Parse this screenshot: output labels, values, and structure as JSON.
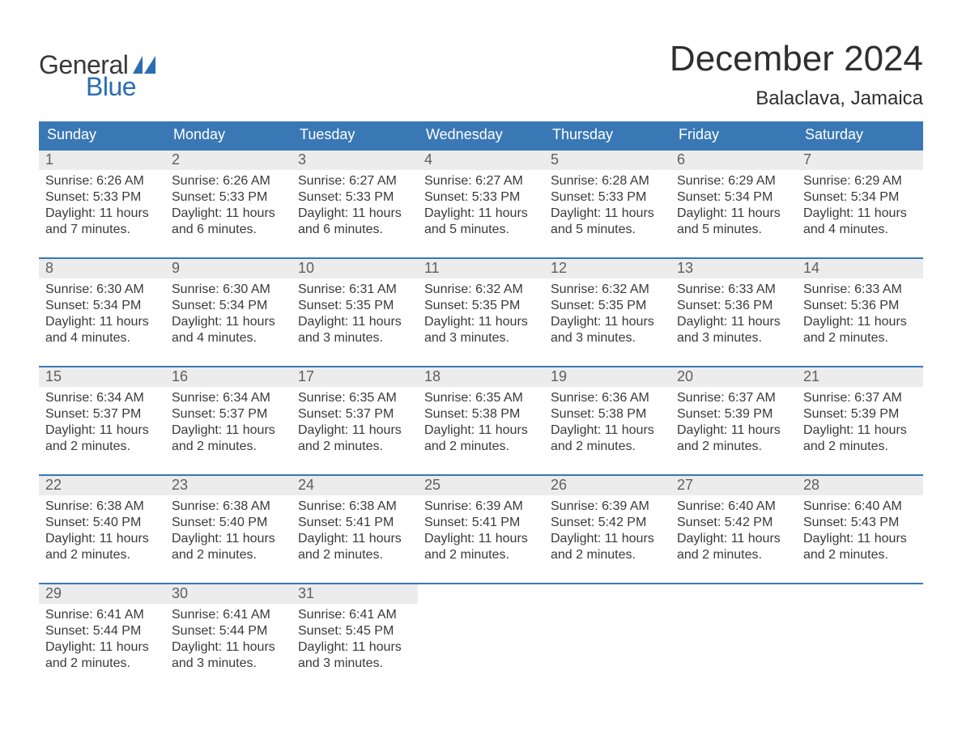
{
  "logo": {
    "text_general": "General",
    "text_blue": "Blue",
    "sail_color": "#2a6db3"
  },
  "title": "December 2024",
  "location": "Balaclava, Jamaica",
  "colors": {
    "header_bg": "#3a78b5",
    "header_text": "#ffffff",
    "daynum_bg": "#ececec",
    "daynum_text": "#5f5f5f",
    "body_text": "#3a3a3a",
    "week_border": "#3a78b5"
  },
  "typography": {
    "title_fontsize": 44,
    "location_fontsize": 24,
    "weekday_fontsize": 18,
    "daynum_fontsize": 18,
    "detail_fontsize": 16
  },
  "weekdays": [
    "Sunday",
    "Monday",
    "Tuesday",
    "Wednesday",
    "Thursday",
    "Friday",
    "Saturday"
  ],
  "labels": {
    "sunrise": "Sunrise:",
    "sunset": "Sunset:",
    "daylight": "Daylight:"
  },
  "weeks": [
    [
      {
        "n": "1",
        "sunrise": "6:26 AM",
        "sunset": "5:33 PM",
        "daylight": "11 hours and 7 minutes."
      },
      {
        "n": "2",
        "sunrise": "6:26 AM",
        "sunset": "5:33 PM",
        "daylight": "11 hours and 6 minutes."
      },
      {
        "n": "3",
        "sunrise": "6:27 AM",
        "sunset": "5:33 PM",
        "daylight": "11 hours and 6 minutes."
      },
      {
        "n": "4",
        "sunrise": "6:27 AM",
        "sunset": "5:33 PM",
        "daylight": "11 hours and 5 minutes."
      },
      {
        "n": "5",
        "sunrise": "6:28 AM",
        "sunset": "5:33 PM",
        "daylight": "11 hours and 5 minutes."
      },
      {
        "n": "6",
        "sunrise": "6:29 AM",
        "sunset": "5:34 PM",
        "daylight": "11 hours and 5 minutes."
      },
      {
        "n": "7",
        "sunrise": "6:29 AM",
        "sunset": "5:34 PM",
        "daylight": "11 hours and 4 minutes."
      }
    ],
    [
      {
        "n": "8",
        "sunrise": "6:30 AM",
        "sunset": "5:34 PM",
        "daylight": "11 hours and 4 minutes."
      },
      {
        "n": "9",
        "sunrise": "6:30 AM",
        "sunset": "5:34 PM",
        "daylight": "11 hours and 4 minutes."
      },
      {
        "n": "10",
        "sunrise": "6:31 AM",
        "sunset": "5:35 PM",
        "daylight": "11 hours and 3 minutes."
      },
      {
        "n": "11",
        "sunrise": "6:32 AM",
        "sunset": "5:35 PM",
        "daylight": "11 hours and 3 minutes."
      },
      {
        "n": "12",
        "sunrise": "6:32 AM",
        "sunset": "5:35 PM",
        "daylight": "11 hours and 3 minutes."
      },
      {
        "n": "13",
        "sunrise": "6:33 AM",
        "sunset": "5:36 PM",
        "daylight": "11 hours and 3 minutes."
      },
      {
        "n": "14",
        "sunrise": "6:33 AM",
        "sunset": "5:36 PM",
        "daylight": "11 hours and 2 minutes."
      }
    ],
    [
      {
        "n": "15",
        "sunrise": "6:34 AM",
        "sunset": "5:37 PM",
        "daylight": "11 hours and 2 minutes."
      },
      {
        "n": "16",
        "sunrise": "6:34 AM",
        "sunset": "5:37 PM",
        "daylight": "11 hours and 2 minutes."
      },
      {
        "n": "17",
        "sunrise": "6:35 AM",
        "sunset": "5:37 PM",
        "daylight": "11 hours and 2 minutes."
      },
      {
        "n": "18",
        "sunrise": "6:35 AM",
        "sunset": "5:38 PM",
        "daylight": "11 hours and 2 minutes."
      },
      {
        "n": "19",
        "sunrise": "6:36 AM",
        "sunset": "5:38 PM",
        "daylight": "11 hours and 2 minutes."
      },
      {
        "n": "20",
        "sunrise": "6:37 AM",
        "sunset": "5:39 PM",
        "daylight": "11 hours and 2 minutes."
      },
      {
        "n": "21",
        "sunrise": "6:37 AM",
        "sunset": "5:39 PM",
        "daylight": "11 hours and 2 minutes."
      }
    ],
    [
      {
        "n": "22",
        "sunrise": "6:38 AM",
        "sunset": "5:40 PM",
        "daylight": "11 hours and 2 minutes."
      },
      {
        "n": "23",
        "sunrise": "6:38 AM",
        "sunset": "5:40 PM",
        "daylight": "11 hours and 2 minutes."
      },
      {
        "n": "24",
        "sunrise": "6:38 AM",
        "sunset": "5:41 PM",
        "daylight": "11 hours and 2 minutes."
      },
      {
        "n": "25",
        "sunrise": "6:39 AM",
        "sunset": "5:41 PM",
        "daylight": "11 hours and 2 minutes."
      },
      {
        "n": "26",
        "sunrise": "6:39 AM",
        "sunset": "5:42 PM",
        "daylight": "11 hours and 2 minutes."
      },
      {
        "n": "27",
        "sunrise": "6:40 AM",
        "sunset": "5:42 PM",
        "daylight": "11 hours and 2 minutes."
      },
      {
        "n": "28",
        "sunrise": "6:40 AM",
        "sunset": "5:43 PM",
        "daylight": "11 hours and 2 minutes."
      }
    ],
    [
      {
        "n": "29",
        "sunrise": "6:41 AM",
        "sunset": "5:44 PM",
        "daylight": "11 hours and 2 minutes."
      },
      {
        "n": "30",
        "sunrise": "6:41 AM",
        "sunset": "5:44 PM",
        "daylight": "11 hours and 3 minutes."
      },
      {
        "n": "31",
        "sunrise": "6:41 AM",
        "sunset": "5:45 PM",
        "daylight": "11 hours and 3 minutes."
      },
      {
        "empty": true
      },
      {
        "empty": true
      },
      {
        "empty": true
      },
      {
        "empty": true
      }
    ]
  ]
}
